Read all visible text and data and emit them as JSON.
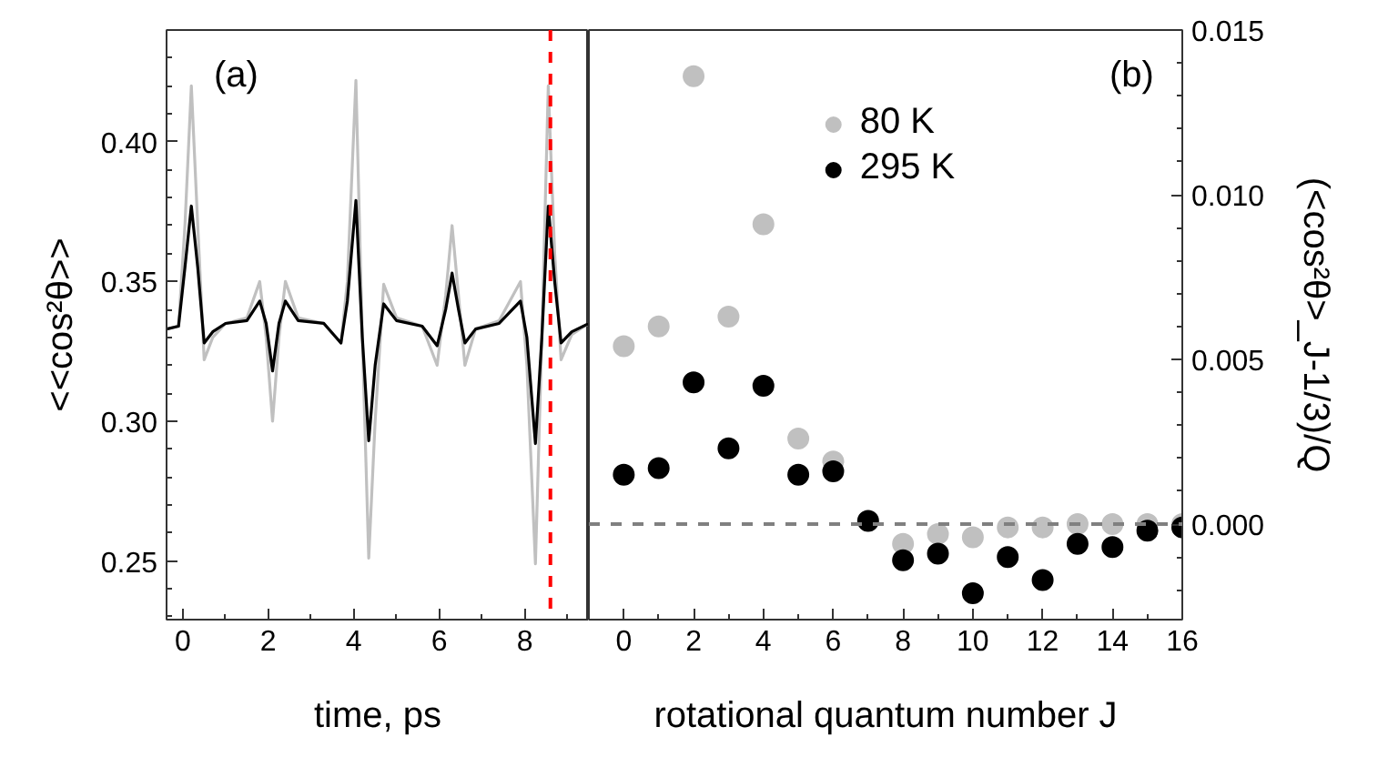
{
  "chart_data": [
    {
      "type": "line",
      "xlabel": "time, ps",
      "ylabel": "<<cos²θ>>",
      "annotations": [
        "(a)"
      ],
      "xlim": [
        -0.38,
        9.5
      ],
      "ylim": [
        0.229,
        0.44
      ],
      "xticks": [
        0,
        2,
        4,
        6,
        8
      ],
      "yticks": [
        0.25,
        {
          "value": 0.3,
          "label": "0.30"
        },
        0.35,
        {
          "value": 0.4,
          "label": "0.40"
        }
      ],
      "grid": false,
      "legend": false,
      "marker": "none",
      "line_style": "solid",
      "ref_lines": [
        {
          "axis": "x",
          "value": 8.6,
          "color": "#ff0000",
          "line_style": "dashed"
        }
      ],
      "series": [
        {
          "color": "#c0c0c0",
          "x": [
            -0.38,
            -0.1,
            0.05,
            0.2,
            0.35,
            0.5,
            0.7,
            1.0,
            1.5,
            1.8,
            1.95,
            2.1,
            2.25,
            2.4,
            2.7,
            3.3,
            3.7,
            3.85,
            4.05,
            4.2,
            4.35,
            4.5,
            4.7,
            5.0,
            5.6,
            5.95,
            6.15,
            6.3,
            6.45,
            6.6,
            6.85,
            7.4,
            7.9,
            8.05,
            8.25,
            8.4,
            8.55,
            8.7,
            8.85,
            9.1,
            9.5
          ],
          "values": [
            0.333,
            0.334,
            0.37,
            0.42,
            0.37,
            0.322,
            0.33,
            0.335,
            0.337,
            0.35,
            0.33,
            0.3,
            0.33,
            0.35,
            0.337,
            0.335,
            0.328,
            0.35,
            0.422,
            0.33,
            0.251,
            0.3,
            0.349,
            0.337,
            0.334,
            0.32,
            0.345,
            0.37,
            0.345,
            0.32,
            0.333,
            0.336,
            0.35,
            0.32,
            0.249,
            0.33,
            0.42,
            0.36,
            0.322,
            0.331,
            0.335
          ]
        },
        {
          "color": "#000000",
          "x": [
            -0.38,
            -0.1,
            0.05,
            0.2,
            0.35,
            0.5,
            0.7,
            1.0,
            1.5,
            1.8,
            1.95,
            2.1,
            2.25,
            2.4,
            2.7,
            3.3,
            3.7,
            3.85,
            4.05,
            4.2,
            4.35,
            4.5,
            4.7,
            5.0,
            5.6,
            5.95,
            6.15,
            6.3,
            6.45,
            6.6,
            6.85,
            7.4,
            7.9,
            8.05,
            8.25,
            8.4,
            8.55,
            8.7,
            8.85,
            9.1,
            9.5
          ],
          "values": [
            0.333,
            0.334,
            0.355,
            0.377,
            0.355,
            0.328,
            0.332,
            0.335,
            0.336,
            0.343,
            0.335,
            0.318,
            0.335,
            0.343,
            0.336,
            0.335,
            0.328,
            0.343,
            0.379,
            0.33,
            0.293,
            0.32,
            0.342,
            0.336,
            0.334,
            0.327,
            0.34,
            0.353,
            0.34,
            0.328,
            0.333,
            0.335,
            0.343,
            0.33,
            0.292,
            0.33,
            0.377,
            0.35,
            0.328,
            0.332,
            0.335
          ]
        }
      ]
    },
    {
      "type": "scatter",
      "xlabel": "rotational quantum number J",
      "y2label": "(<cos²θ>_J-1/3)/Q",
      "annotations": [
        "(b)"
      ],
      "xlim": [
        -1,
        16
      ],
      "y2lim": [
        -0.0029,
        0.015
      ],
      "xticks": [
        0,
        2,
        4,
        6,
        8,
        10,
        12,
        14,
        16
      ],
      "y2ticks": [
        {
          "value": 0,
          "label": "0.000"
        },
        {
          "value": 0.005,
          "label": "0.005"
        },
        {
          "value": 0.01,
          "label": "0.010"
        },
        {
          "value": 0.015,
          "label": "0.015"
        }
      ],
      "grid": false,
      "legend": "top",
      "marker": "circle",
      "ref_lines": [
        {
          "axis": "y2",
          "value": 0,
          "color": "#808080",
          "line_style": "dashed"
        }
      ],
      "x": [
        0,
        1,
        2,
        3,
        4,
        5,
        6,
        7,
        8,
        9,
        10,
        11,
        12,
        13,
        14,
        15,
        16
      ],
      "series": [
        {
          "name": "80 K",
          "color": "#c0c0c0",
          "axis": "y2",
          "values": [
            0.0054,
            0.006,
            0.0136,
            0.0063,
            0.0091,
            0.0026,
            0.0019,
            null,
            -0.0006,
            -0.0003,
            -0.0004,
            -0.0001,
            -0.0001,
            0.0,
            0.0,
            0.0,
            0.0
          ]
        },
        {
          "name": "295 K",
          "color": "#000000",
          "axis": "y2",
          "values": [
            0.0015,
            0.0017,
            0.0043,
            0.0023,
            0.0042,
            0.0015,
            0.0016,
            0.0001,
            -0.0011,
            -0.0009,
            -0.0021,
            -0.001,
            -0.0017,
            -0.0006,
            -0.0007,
            -0.0002,
            -0.0001
          ]
        }
      ]
    }
  ]
}
